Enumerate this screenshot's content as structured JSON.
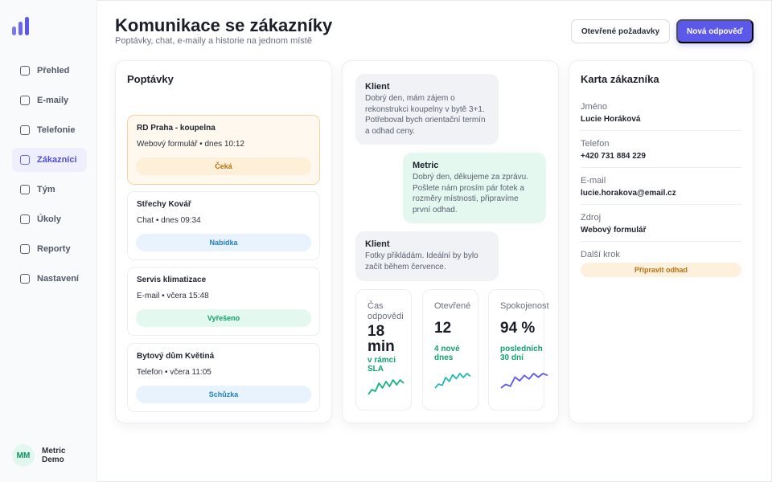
{
  "colors": {
    "accent": "#5b58ea",
    "success": "#10a070",
    "warning": "#b6700f",
    "info": "#1f7fc0"
  },
  "sidebar": {
    "items": [
      {
        "label": "Přehled",
        "icon": "square-icon",
        "active": false
      },
      {
        "label": "E-maily",
        "icon": "square-icon",
        "active": false
      },
      {
        "label": "Telefonie",
        "icon": "square-icon",
        "active": false
      },
      {
        "label": "Zákazníci",
        "icon": "square-icon",
        "active": true
      },
      {
        "label": "Tým",
        "icon": "square-icon",
        "active": false
      },
      {
        "label": "Úkoly",
        "icon": "square-icon",
        "active": false
      },
      {
        "label": "Reporty",
        "icon": "square-icon",
        "active": false
      },
      {
        "label": "Nastavení",
        "icon": "square-icon",
        "active": false
      }
    ],
    "user": {
      "initials": "MM",
      "name": "Metric Demo"
    }
  },
  "header": {
    "title": "Komunikace se zákazníky",
    "subtitle": "Poptávky, chat, e-maily a historie na jednom místě",
    "open_requests_label": "Otevřené požadavky",
    "new_reply_label": "Nová odpověď"
  },
  "inquiries": {
    "title": "Poptávky",
    "items": [
      {
        "name": "RD Praha - koupelna",
        "meta": "Webový formulář • dnes 10:12",
        "status": "Čeká",
        "selected": true
      },
      {
        "name": "Střechy Kovář",
        "meta": "Chat • dnes 09:34",
        "status": "Nabídka",
        "selected": false
      },
      {
        "name": "Servis klimatizace",
        "meta": "E-mail • včera 15:48",
        "status": "Vyřešeno",
        "selected": false
      },
      {
        "name": "Bytový dům Květiná",
        "meta": "Telefon • včera 11:05",
        "status": "Schůzka",
        "selected": false
      }
    ]
  },
  "chat": {
    "messages": [
      {
        "author": "Klient",
        "text": "Dobrý den, mám zájem o rekonstrukci koupelny v bytě 3+1. Potřeboval bych orientační termín a odhad ceny."
      },
      {
        "author": "Metric",
        "text": "Dobrý den, děkujeme za zprávu. Pošlete nám prosím pár fotek a rozměry místnosti, připravíme první odhad."
      },
      {
        "author": "Klient",
        "text": "Fotky přikládám. Ideální by bylo začít během července."
      }
    ],
    "kpis": [
      {
        "label": "Čas odpovědi",
        "value": "18 min",
        "note": "v rámci SLA",
        "spark_color": "#14b27c",
        "spark": [
          2,
          5,
          4,
          9,
          6,
          10,
          7,
          11,
          8,
          11,
          9
        ]
      },
      {
        "label": "Otevřené",
        "value": "12",
        "note": "4 nové dnes",
        "spark_color": "#22b9b3",
        "spark": [
          2,
          5,
          4,
          10,
          7,
          12,
          9,
          13,
          10,
          13,
          11
        ]
      },
      {
        "label": "Spokojenost",
        "value": "94 %",
        "note": "posledních 30 dní",
        "spark_color": "#5b58ea",
        "spark": [
          3,
          5,
          4,
          9,
          7,
          10,
          8,
          11,
          9,
          11,
          10
        ]
      }
    ]
  },
  "customer": {
    "title": "Karta zákazníka",
    "fields": [
      {
        "label": "Jméno",
        "value": "Lucie Horáková"
      },
      {
        "label": "Telefon",
        "value": "+420 731 884 229"
      },
      {
        "label": "E-mail",
        "value": "lucie.horakova@email.cz"
      },
      {
        "label": "Zdroj",
        "value": "Webový formulář"
      }
    ],
    "next_step_label": "Další krok",
    "next_step_value": "Připravit odhad"
  }
}
